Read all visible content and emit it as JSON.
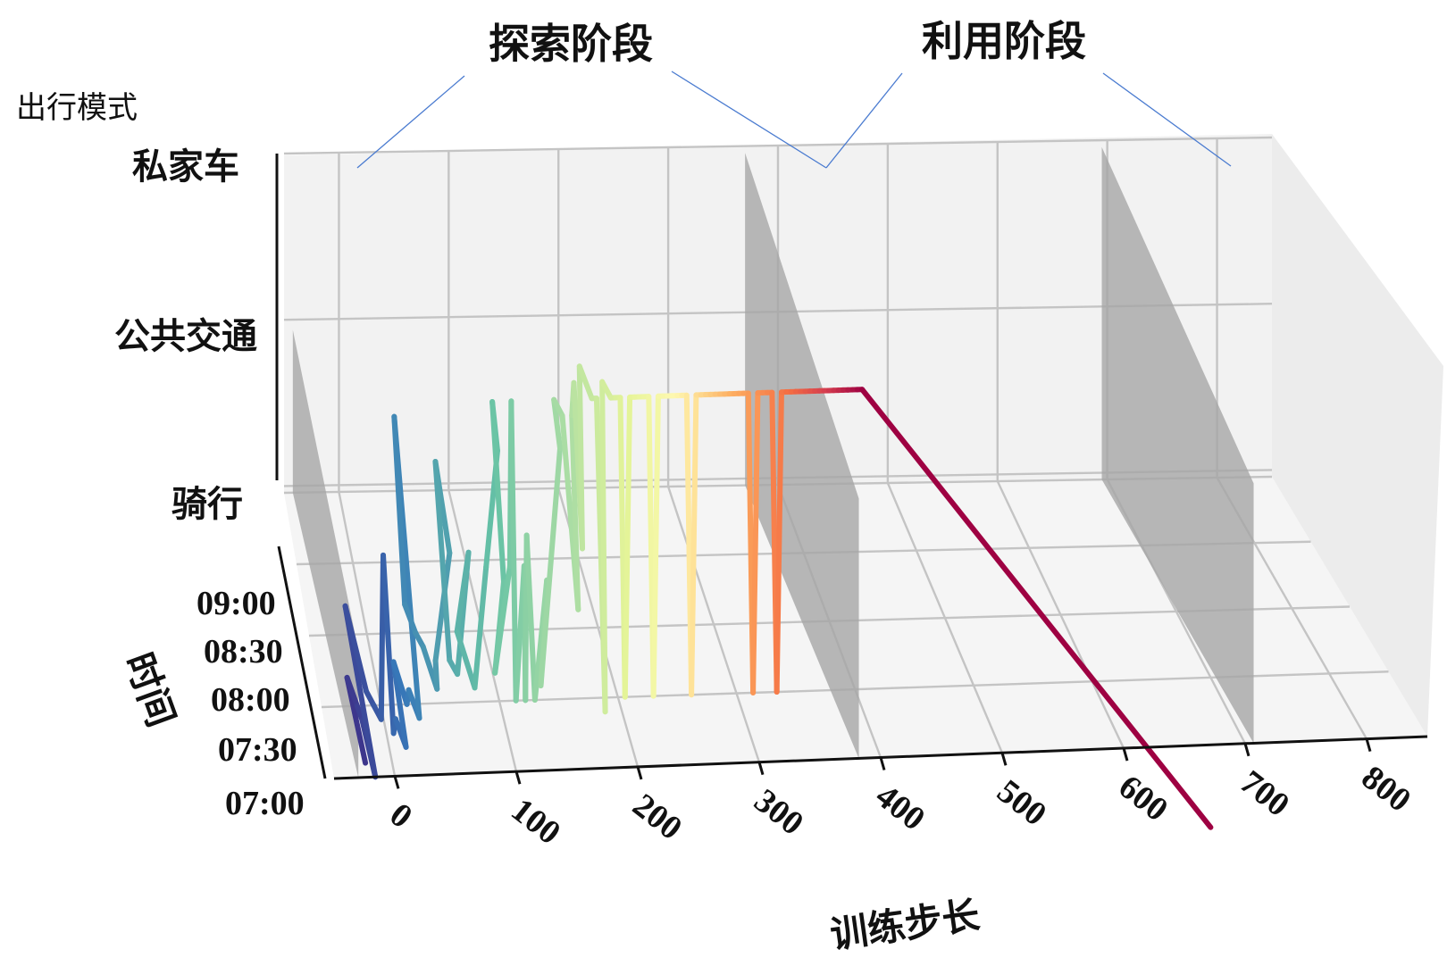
{
  "chart_data": {
    "type": "line",
    "projection": "3d",
    "phases": [
      "探索阶段",
      "利用阶段"
    ],
    "z_axis": {
      "title": "出行模式",
      "categories": [
        "骑行",
        "公共交通",
        "私家车"
      ]
    },
    "y_axis": {
      "title": "时间",
      "ticks": [
        "07:00",
        "07:30",
        "08:00",
        "08:30",
        "09:00"
      ]
    },
    "x_axis": {
      "title": "训练步长",
      "ticks": [
        0,
        100,
        200,
        300,
        400,
        500,
        600,
        700,
        800
      ],
      "range": [
        -50,
        850
      ]
    },
    "colors": {
      "grid": "#c4c4c4",
      "pane_back": "#f2f2f2",
      "pane_floor": "#f6f6f6",
      "shadow": "#a6a6a6",
      "annotation": "#4a7bd0"
    },
    "series": {
      "x": [
        -22,
        -24,
        -20,
        -18,
        -16,
        -14,
        -10,
        -6,
        -2,
        2,
        6,
        10,
        14,
        18,
        22,
        26,
        30,
        34,
        38,
        42,
        46,
        50,
        54,
        58,
        62,
        66,
        70,
        74,
        78,
        82,
        86,
        90,
        94,
        98,
        102,
        106,
        110,
        114,
        118,
        122,
        126,
        130,
        134,
        138,
        142,
        146,
        150,
        154,
        158,
        162,
        166,
        170,
        174,
        178,
        182,
        186,
        190,
        194,
        198,
        202,
        206,
        210,
        214,
        218,
        222,
        226,
        230,
        234,
        238,
        242,
        246,
        250,
        254,
        258,
        262,
        266,
        270,
        274,
        278,
        282,
        286,
        290,
        294,
        298,
        302,
        306,
        310,
        314,
        318,
        322,
        326,
        330,
        334,
        338,
        342,
        346,
        350,
        354,
        358,
        362,
        366,
        370,
        374,
        378,
        382,
        386,
        390,
        394,
        398,
        402,
        406,
        700
      ],
      "y_min": [
        7.1,
        7.7,
        7.5,
        7.4,
        7.0,
        8.2,
        7.6,
        7.5,
        7.4,
        7.5,
        7.3,
        7.4,
        7.2,
        7.8,
        7.5,
        7.6,
        7.4,
        8.4,
        8.2,
        8.0,
        7.9,
        7.6,
        7.8,
        7.5,
        8.1,
        7.8,
        7.7,
        7.5,
        8.0,
        7.6,
        7.4,
        7.2,
        7.5,
        7.3,
        7.7,
        7.4,
        7.5,
        7.5,
        7.4,
        7.5,
        7.6,
        7.5,
        7.3,
        7.6,
        7.2,
        7.5,
        7.4,
        7.1,
        7.4,
        7.5,
        7.6,
        7.5,
        7.7,
        7.5,
        7.5,
        7.4,
        7.6,
        7.5,
        7.5,
        7.5,
        7.5,
        7.5,
        7.5,
        7.5,
        7.5,
        7.5,
        7.5,
        7.5,
        7.5,
        7.5,
        7.5,
        7.5,
        7.5,
        7.5,
        7.5,
        7.5,
        7.5,
        7.5,
        7.5,
        7.5,
        7.5,
        7.5,
        7.5,
        7.5,
        7.5,
        7.5,
        7.5,
        7.5,
        7.5,
        7.5,
        7.5,
        7.5,
        7.5,
        7.5,
        7.5,
        7.5,
        7.5,
        7.5,
        7.5,
        7.5,
        7.5,
        7.5,
        7.5,
        7.5,
        7.5,
        7.5,
        7.5,
        7.5,
        7.5,
        7.5,
        7.5,
        7.5
      ],
      "mode": [
        "骑行",
        "骑行",
        "骑行",
        "骑行",
        "骑行",
        "骑行",
        "骑行",
        "骑行",
        "骑行",
        "公共交通",
        "骑行",
        "骑行",
        "骑行",
        "骑行",
        "骑行",
        "骑行",
        "骑行",
        "公共交通",
        "骑行",
        "骑行",
        "骑行",
        "骑行",
        "骑行",
        "公共交通",
        "公共交通",
        "骑行",
        "骑行",
        "公共交通",
        "骑行",
        "骑行",
        "公共交通",
        "私家车",
        "私家车",
        "公共交通",
        "骑行",
        "公共交通",
        "私家车",
        "骑行",
        "公共交通",
        "骑行",
        "公共交通",
        "骑行",
        "公共交通",
        "骑行",
        "私家车",
        "私家车",
        "私家车",
        "公共交通",
        "私家车",
        "私家车",
        "私家车",
        "公共交通",
        "私家车",
        "私家车",
        "私家车",
        "骑行",
        "私家车",
        "私家车",
        "私家车",
        "私家车",
        "骑行",
        "私家车",
        "私家车",
        "私家车",
        "私家车",
        "私家车",
        "骑行",
        "私家车",
        "私家车",
        "私家车",
        "私家车",
        "私家车",
        "私家车",
        "私家车",
        "骑行",
        "私家车",
        "私家车",
        "私家车",
        "私家车",
        "私家车",
        "私家车",
        "私家车",
        "私家车",
        "私家车",
        "私家车",
        "私家车",
        "私家车",
        "骑行",
        "私家车",
        "私家车",
        "私家车",
        "私家车",
        "骑行",
        "私家车",
        "私家车",
        "私家车",
        "私家车",
        "私家车",
        "私家车",
        "私家车",
        "私家车",
        "私家车",
        "私家车",
        "私家车",
        "私家车",
        "私家车",
        "私家车",
        "私家车",
        "私家车",
        "私家车",
        "私家车"
      ]
    }
  }
}
